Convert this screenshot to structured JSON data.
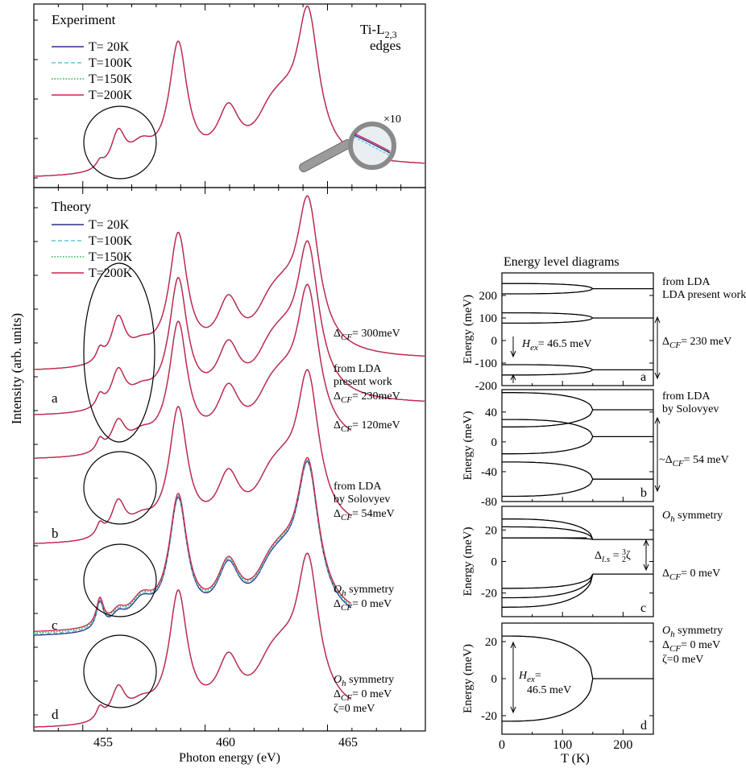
{
  "chart_data": [
    {
      "type": "line",
      "panel": "experiment",
      "title": "Experiment",
      "edge_label": [
        "Ti-L2,3",
        "edges"
      ],
      "magnifier_label": "×10",
      "x_range": [
        453,
        469
      ],
      "x_ticks": [
        455,
        460,
        465
      ],
      "xlabel": "Photon energy (eV)",
      "ylabel": "Intensity (arb. units)",
      "series": [
        {
          "name": "T= 20K",
          "color": "#2b2f8f",
          "dash": "solid"
        },
        {
          "name": "T=100K",
          "color": "#5ec8d0",
          "dash": "dashed"
        },
        {
          "name": "T=150K",
          "color": "#1fb34a",
          "dash": "dotted"
        },
        {
          "name": "T=200K",
          "color": "#d1224b",
          "dash": "solid"
        }
      ],
      "peaks_eV": [
        456.4,
        458.9,
        461.0,
        464.2
      ]
    },
    {
      "type": "line",
      "panel": "theory",
      "title": "Theory",
      "x_range": [
        453,
        469
      ],
      "x_ticks": [
        455,
        460,
        465
      ],
      "xlabel": "Photon energy (eV)",
      "ylabel": "Intensity (arb. units)",
      "series": [
        {
          "name": "T= 20K",
          "color": "#2b2f8f",
          "dash": "solid"
        },
        {
          "name": "T=100K",
          "color": "#5ec8d0",
          "dash": "dashed"
        },
        {
          "name": "T=150K",
          "color": "#1fb34a",
          "dash": "dotted"
        },
        {
          "name": "T=200K",
          "color": "#d1224b",
          "dash": "solid"
        }
      ],
      "curve_labels": [
        {
          "letter": "",
          "lines": [
            "ΔCF= 300meV"
          ]
        },
        {
          "letter": "a",
          "lines": [
            "from LDA",
            "present work",
            "ΔCF= 230meV"
          ]
        },
        {
          "letter": "",
          "lines": [
            "ΔCF= 120meV"
          ]
        },
        {
          "letter": "b",
          "lines": [
            "from LDA",
            "by Solovyev",
            "ΔCF= 54meV"
          ]
        },
        {
          "letter": "c",
          "lines": [
            "O'h symmetry",
            "ΔCF= 0 meV"
          ]
        },
        {
          "letter": "d",
          "lines": [
            "Oh symmetry",
            "ΔCF= 0 meV",
            "ζ=0 meV"
          ]
        }
      ]
    },
    {
      "type": "line",
      "panel": "energy-level-diagrams",
      "title": "Energy level diagrams",
      "xlabel": "T (K)",
      "x_range": [
        0,
        250
      ],
      "x_ticks": [
        0,
        100,
        200
      ],
      "ylabel": "Energy (meV)",
      "transition_T": 150,
      "subplots": [
        {
          "letter": "a",
          "ylim": [
            -200,
            300
          ],
          "yticks": [
            200,
            100,
            0,
            -100,
            -200
          ],
          "levels_high_T": [
            230,
            100,
            -130
          ],
          "splitting_low_T": 23,
          "annotation": "Hex= 46.5 meV",
          "side_labels": [
            "from LDA",
            "LDA present work"
          ],
          "gap_label": "ΔCF= 230 meV"
        },
        {
          "letter": "b",
          "ylim": [
            -80,
            70
          ],
          "yticks": [
            40,
            0,
            -40,
            -80
          ],
          "levels_high_T": [
            43,
            7,
            -50
          ],
          "splitting_low_T": 23,
          "side_labels": [
            "from LDA",
            "by Solovyev"
          ],
          "gap_label": "~ΔCF= 54 meV"
        },
        {
          "letter": "c",
          "ylim": [
            -35,
            35
          ],
          "yticks": [
            20,
            0,
            -20
          ],
          "levels_high_T": [
            14,
            -8
          ],
          "low_T_levels": [
            27,
            22,
            15,
            -17,
            -23,
            -29
          ],
          "side_labels": [
            "O'h symmetry"
          ],
          "gap_label": "ΔCF= 0 meV",
          "annotation": "Δl.s = 3/2 ζ"
        },
        {
          "letter": "d",
          "ylim": [
            -30,
            30
          ],
          "yticks": [
            20,
            0,
            -20
          ],
          "levels_high_T": [
            0
          ],
          "low_T_levels": [
            23,
            -23
          ],
          "side_labels": [
            "Oh symmetry",
            "ΔCF= 0 meV",
            "ζ=0 meV"
          ],
          "annotation": "Hex= 46.5 meV"
        }
      ]
    }
  ]
}
